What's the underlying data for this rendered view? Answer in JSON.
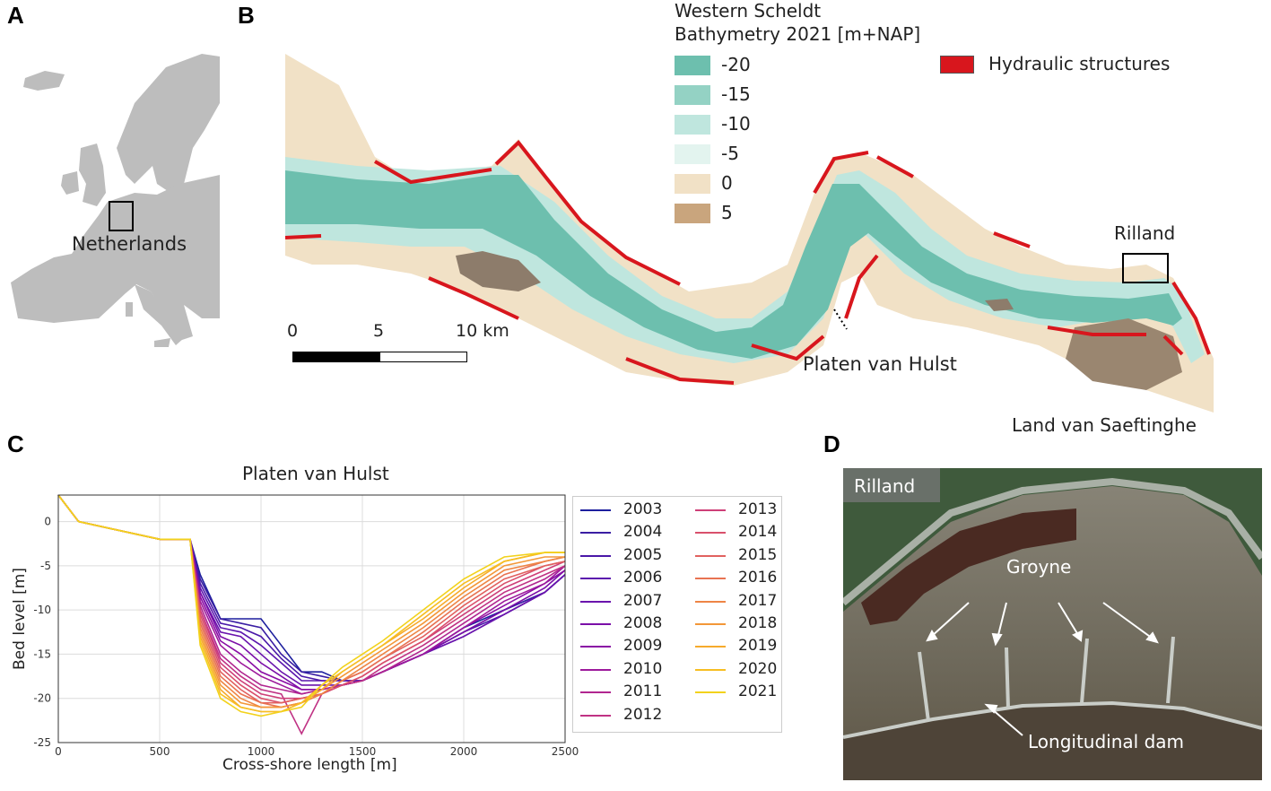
{
  "panels": {
    "a": "A",
    "b": "B",
    "c": "C",
    "d": "D"
  },
  "panel_a": {
    "label": "Netherlands"
  },
  "panel_b": {
    "legend_title_1": "Western Scheldt",
    "legend_title_2": "Bathymetry 2021 [m+NAP]",
    "legend": [
      {
        "label": "-20",
        "color": "#6dbfae"
      },
      {
        "label": "-15",
        "color": "#94d2c4"
      },
      {
        "label": "-10",
        "color": "#bfe6de"
      },
      {
        "label": "-5",
        "color": "#e3f4ef"
      },
      {
        "label": "0",
        "color": "#f1e1c6"
      },
      {
        "label": "5",
        "color": "#c9a57d"
      }
    ],
    "structures_label": "Hydraulic structures",
    "structures_color": "#d8161d",
    "scale": {
      "t0": "0",
      "t1": "5",
      "t2": "10 km"
    },
    "places": {
      "rilland": "Rilland",
      "platen": "Platen van Hulst",
      "saeftinghe": "Land van Saeftinghe"
    }
  },
  "chart_data": {
    "type": "line",
    "title": "Platen van Hulst",
    "xlabel": "Cross-shore length [m]",
    "ylabel": "Bed level [m]",
    "xlim": [
      0,
      2500
    ],
    "ylim": [
      -25,
      3
    ],
    "xticks": [
      0,
      500,
      1000,
      1500,
      2000,
      2500
    ],
    "yticks": [
      0,
      -5,
      -10,
      -15,
      -20,
      -25
    ],
    "grid": true,
    "legend_position": "right",
    "years": [
      "2003",
      "2004",
      "2005",
      "2006",
      "2007",
      "2008",
      "2009",
      "2010",
      "2011",
      "2012",
      "2013",
      "2014",
      "2015",
      "2016",
      "2017",
      "2018",
      "2019",
      "2020",
      "2021"
    ],
    "colors": [
      "#1d1f9e",
      "#3a1ea3",
      "#4a18a8",
      "#5b16ae",
      "#6a14ad",
      "#7b0fa8",
      "#8a0ea5",
      "#9d1a9c",
      "#b12690",
      "#c03284",
      "#ce3f78",
      "#d9506c",
      "#e1615f",
      "#e87352",
      "#ee8545",
      "#f39738",
      "#f6aa2c",
      "#f7be22",
      "#f2d21c"
    ],
    "x": [
      0,
      100,
      500,
      650,
      700,
      800,
      900,
      1000,
      1100,
      1200,
      1300,
      1400,
      1500,
      1600,
      1800,
      2000,
      2200,
      2400,
      2500
    ],
    "series": [
      {
        "name": "2003",
        "values": [
          3,
          0,
          -2,
          -2,
          -6,
          -11,
          -11,
          -11,
          -14,
          -17,
          -17,
          -18,
          -18,
          -17,
          -15,
          -12,
          -10,
          -8,
          -6
        ]
      },
      {
        "name": "2004",
        "values": [
          3,
          0,
          -2,
          -2,
          -6.5,
          -11,
          -11.5,
          -12,
          -15,
          -17,
          -17.5,
          -18,
          -18,
          -17,
          -15,
          -12.5,
          -10,
          -8,
          -6
        ]
      },
      {
        "name": "2005",
        "values": [
          3,
          0,
          -2,
          -2,
          -7,
          -11.5,
          -12,
          -13,
          -15.5,
          -17.5,
          -18,
          -18,
          -18,
          -17,
          -15,
          -12.5,
          -10.5,
          -8,
          -6
        ]
      },
      {
        "name": "2006",
        "values": [
          3,
          0,
          -2,
          -2,
          -7.5,
          -12,
          -12.5,
          -14,
          -16,
          -18,
          -18,
          -18,
          -18,
          -17,
          -15,
          -13,
          -10.5,
          -8,
          -6
        ]
      },
      {
        "name": "2007",
        "values": [
          3,
          0,
          -2,
          -2,
          -8,
          -12.5,
          -13,
          -15,
          -17,
          -18.5,
          -18.5,
          -18.5,
          -18,
          -17,
          -15,
          -13,
          -10.5,
          -8,
          -6
        ]
      },
      {
        "name": "2008",
        "values": [
          3,
          0,
          -2,
          -2,
          -8,
          -13,
          -14,
          -16,
          -17.5,
          -19,
          -19,
          -18.5,
          -18,
          -17,
          -15,
          -12.5,
          -10,
          -7.5,
          -5.5
        ]
      },
      {
        "name": "2009",
        "values": [
          3,
          0,
          -2,
          -2,
          -8.5,
          -13.5,
          -15,
          -17,
          -18,
          -19,
          -19,
          -18.5,
          -18,
          -17,
          -15,
          -12,
          -9.5,
          -7,
          -5.5
        ]
      },
      {
        "name": "2010",
        "values": [
          3,
          0,
          -2,
          -2,
          -9,
          -14,
          -16,
          -17.5,
          -18.5,
          -19.5,
          -19,
          -18.5,
          -18,
          -17,
          -15,
          -12,
          -9,
          -7,
          -5
        ]
      },
      {
        "name": "2011",
        "values": [
          3,
          0,
          -2,
          -2,
          -9.5,
          -15,
          -17,
          -18.5,
          -19,
          -19.5,
          -19,
          -18.5,
          -18,
          -17,
          -14.5,
          -11.5,
          -8.5,
          -6.5,
          -5
        ]
      },
      {
        "name": "2012",
        "values": [
          3,
          0,
          -2,
          -2,
          -10,
          -15.5,
          -17.5,
          -19,
          -19.5,
          -24,
          -19.5,
          -18.5,
          -18,
          -16.5,
          -14,
          -11,
          -8,
          -6,
          -5
        ]
      },
      {
        "name": "2013",
        "values": [
          3,
          0,
          -2,
          -2,
          -10,
          -16,
          -18,
          -19.5,
          -20,
          -20,
          -19.5,
          -18.5,
          -17.5,
          -16,
          -13.5,
          -10.5,
          -7.5,
          -5.5,
          -4.5
        ]
      },
      {
        "name": "2014",
        "values": [
          3,
          0,
          -2,
          -2,
          -10.5,
          -16.5,
          -18.5,
          -20,
          -20.5,
          -20,
          -19.5,
          -18.5,
          -17.5,
          -16,
          -13.5,
          -10,
          -7,
          -5,
          -4.5
        ]
      },
      {
        "name": "2015",
        "values": [
          3,
          0,
          -2,
          -2,
          -11,
          -17,
          -19,
          -20.5,
          -20.5,
          -20,
          -19.5,
          -18,
          -17,
          -15.5,
          -13,
          -9.5,
          -6.5,
          -5,
          -4.5
        ]
      },
      {
        "name": "2016",
        "values": [
          3,
          0,
          -2,
          -2,
          -11.5,
          -17.5,
          -19.5,
          -20.5,
          -21,
          -20.5,
          -19.5,
          -18,
          -17,
          -15.5,
          -12.5,
          -9,
          -6,
          -4.5,
          -4
        ]
      },
      {
        "name": "2017",
        "values": [
          3,
          0,
          -2,
          -2,
          -12,
          -18,
          -20,
          -21,
          -21,
          -20.5,
          -19.5,
          -18,
          -16.5,
          -15,
          -12,
          -8.5,
          -5.5,
          -4.5,
          -4
        ]
      },
      {
        "name": "2018",
        "values": [
          3,
          0,
          -2,
          -2,
          -12.5,
          -18.5,
          -20.5,
          -21,
          -21,
          -20.5,
          -19,
          -17.5,
          -16,
          -14.5,
          -11.5,
          -8,
          -5,
          -4,
          -4
        ]
      },
      {
        "name": "2019",
        "values": [
          3,
          0,
          -2,
          -2,
          -13,
          -19,
          -21,
          -21.5,
          -21.5,
          -20.5,
          -19,
          -17,
          -15.5,
          -14,
          -11,
          -7.5,
          -4.5,
          -3.5,
          -3.5
        ]
      },
      {
        "name": "2020",
        "values": [
          3,
          0,
          -2,
          -2,
          -13.5,
          -19.5,
          -21,
          -21.5,
          -21.5,
          -20.5,
          -18.5,
          -17,
          -15.5,
          -14,
          -10.5,
          -7,
          -4.5,
          -3.5,
          -3.5
        ]
      },
      {
        "name": "2021",
        "values": [
          3,
          0,
          -2,
          -2,
          -14,
          -20,
          -21.5,
          -22,
          -21.5,
          -21,
          -18.5,
          -16.5,
          -15,
          -13.5,
          -10,
          -6.5,
          -4,
          -3.5,
          -3.5
        ]
      }
    ]
  },
  "panel_d": {
    "rilland": "Rilland",
    "groyne": "Groyne",
    "dam": "Longitudinal dam"
  }
}
